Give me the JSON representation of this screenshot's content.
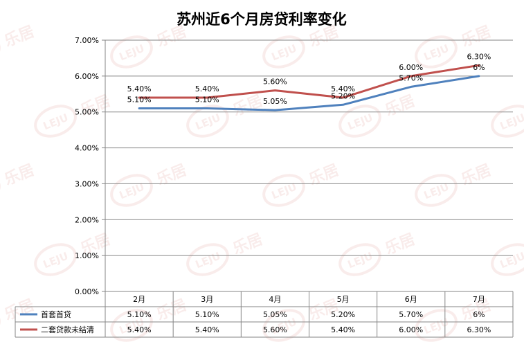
{
  "chart_data": {
    "type": "line",
    "title": "苏州近6个月房贷利率变化",
    "categories": [
      "2月",
      "3月",
      "4月",
      "5月",
      "6月",
      "7月"
    ],
    "ylim": [
      0,
      7
    ],
    "y_ticks": [
      "0.00%",
      "1.00%",
      "2.00%",
      "3.00%",
      "4.00%",
      "5.00%",
      "6.00%",
      "7.00%"
    ],
    "grid": true,
    "legend": "bottom data table",
    "series": [
      {
        "name": "首套首贷",
        "values": [
          5.1,
          5.1,
          5.05,
          5.2,
          5.7,
          6.0
        ],
        "labels": [
          "5.10%",
          "5.10%",
          "5.05%",
          "5.20%",
          "5.70%",
          "6%"
        ],
        "color": "#4f81bd"
      },
      {
        "name": "二套贷款未结清",
        "values": [
          5.4,
          5.4,
          5.6,
          5.4,
          6.0,
          6.3
        ],
        "labels": [
          "5.40%",
          "5.40%",
          "5.60%",
          "5.40%",
          "6.00%",
          "6.30%"
        ],
        "color": "#c0504d"
      }
    ]
  },
  "watermark": {
    "badge": "LEJU",
    "text": "乐居"
  }
}
